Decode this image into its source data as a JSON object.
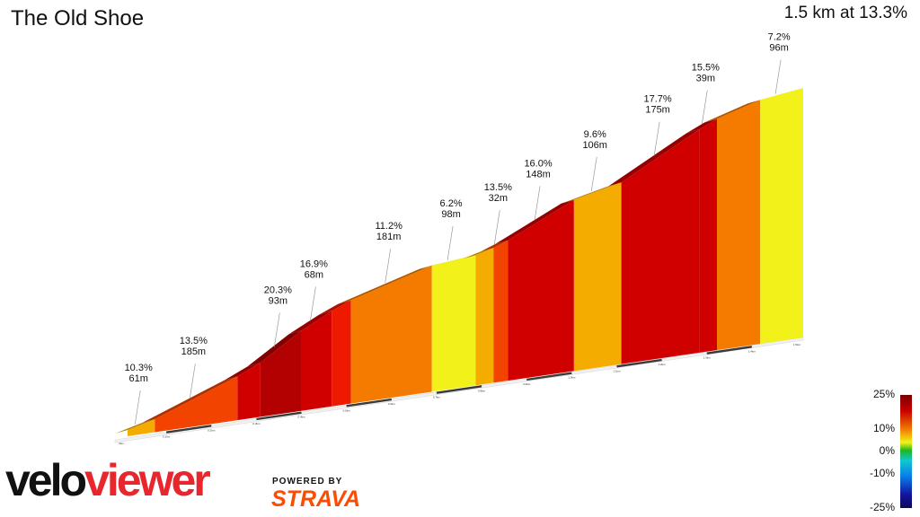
{
  "title": "The Old Shoe",
  "summary": "1.5 km at 13.3%",
  "chart_data": {
    "type": "area",
    "segments": [
      {
        "grade": "10.3%",
        "length": "61m",
        "g": 10.3,
        "len": 61
      },
      {
        "grade": "13.5%",
        "length": "185m",
        "g": 13.5,
        "len": 185
      },
      {
        "grade": "",
        "length": "",
        "g": 15.5,
        "len": 50
      },
      {
        "grade": "20.3%",
        "length": "93m",
        "g": 20.3,
        "len": 93
      },
      {
        "grade": "16.9%",
        "length": "68m",
        "g": 16.9,
        "len": 68
      },
      {
        "grade": "",
        "length": "",
        "g": 14.5,
        "len": 43
      },
      {
        "grade": "11.2%",
        "length": "181m",
        "g": 11.2,
        "len": 181
      },
      {
        "grade": "6.2%",
        "length": "98m",
        "g": 6.2,
        "len": 98
      },
      {
        "grade": "",
        "length": "",
        "g": 10.5,
        "len": 40
      },
      {
        "grade": "13.5%",
        "length": "32m",
        "g": 13.5,
        "len": 32
      },
      {
        "grade": "16.0%",
        "length": "148m",
        "g": 16.0,
        "len": 148
      },
      {
        "grade": "9.6%",
        "length": "106m",
        "g": 9.6,
        "len": 106
      },
      {
        "grade": "17.7%",
        "length": "175m",
        "g": 17.7,
        "len": 175
      },
      {
        "grade": "15.5%",
        "length": "39m",
        "g": 15.5,
        "len": 39
      },
      {
        "grade": "",
        "length": "",
        "g": 11.5,
        "len": 97
      },
      {
        "grade": "7.2%",
        "length": "96m",
        "g": 7.2,
        "len": 96
      }
    ],
    "x_ticks": [
      "0km",
      "0.1km",
      "0.2km",
      "0.3km",
      "0.4km",
      "0.5km",
      "0.6km",
      "0.7km",
      "0.8km",
      "0.9km",
      "1.0km",
      "1.1km",
      "1.2km",
      "1.3km",
      "1.4km",
      "1.5km"
    ],
    "legend": {
      "labels": [
        "25%",
        "10%",
        "0%",
        "-10%",
        "-25%"
      ],
      "colors": {
        "steep": "#8b0000",
        "hard": "#e00000",
        "moderate": "#f57a00",
        "easy": "#f4f222",
        "flat": "#1fb71f",
        "descent": "#0a7de8"
      }
    }
  },
  "branding": {
    "logo_part1": "velo",
    "logo_part2": "viewer",
    "powered_by": "POWERED BY",
    "strava": "STRAVA"
  }
}
